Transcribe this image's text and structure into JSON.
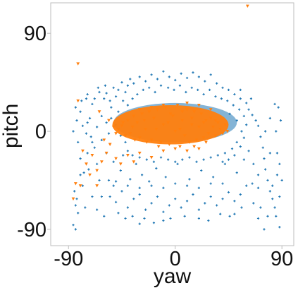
{
  "chart_data": {
    "type": "scatter",
    "title": "",
    "xlabel": "yaw",
    "ylabel": "pitch",
    "xlim": [
      -105,
      100
    ],
    "ylim": [
      -105,
      118
    ],
    "xticks": [
      -90,
      0,
      90
    ],
    "xtick_labels": [
      "-90",
      "0",
      "90"
    ],
    "yticks": [
      -90,
      0,
      90
    ],
    "ytick_labels": [
      "-90",
      "0",
      "90"
    ],
    "grid": false,
    "legend": "none",
    "series": [
      {
        "color": "#1f77b4",
        "marker": "plus",
        "points": [
          [
            -84,
            22
          ],
          [
            -80,
            18
          ],
          [
            -78,
            5
          ],
          [
            -75,
            -2
          ],
          [
            -72,
            12
          ],
          [
            -70,
            25
          ],
          [
            -68,
            -15
          ],
          [
            -66,
            -30
          ],
          [
            -64,
            -45
          ],
          [
            -62,
            -60
          ],
          [
            -85,
            -55
          ],
          [
            -84,
            -68
          ],
          [
            -83,
            -62
          ],
          [
            -82,
            -75
          ],
          [
            -80,
            -40
          ],
          [
            -78,
            -50
          ],
          [
            -76,
            -70
          ],
          [
            -74,
            -20
          ],
          [
            -73,
            -35
          ],
          [
            -71,
            -5
          ],
          [
            -60,
            30
          ],
          [
            -58,
            35
          ],
          [
            -55,
            28
          ],
          [
            -52,
            40
          ],
          [
            -50,
            32
          ],
          [
            -48,
            38
          ],
          [
            -45,
            45
          ],
          [
            -42,
            36
          ],
          [
            -40,
            42
          ],
          [
            -38,
            48
          ],
          [
            -35,
            44
          ],
          [
            -30,
            50
          ],
          [
            -25,
            46
          ],
          [
            -20,
            52
          ],
          [
            -15,
            48
          ],
          [
            -10,
            55
          ],
          [
            -5,
            50
          ],
          [
            0,
            47
          ],
          [
            5,
            53
          ],
          [
            10,
            49
          ],
          [
            15,
            54
          ],
          [
            20,
            50
          ],
          [
            25,
            46
          ],
          [
            30,
            52
          ],
          [
            35,
            44
          ],
          [
            40,
            40
          ],
          [
            45,
            38
          ],
          [
            50,
            34
          ],
          [
            55,
            30
          ],
          [
            60,
            26
          ],
          [
            62,
            20
          ],
          [
            65,
            15
          ],
          [
            68,
            10
          ],
          [
            70,
            5
          ],
          [
            72,
            -5
          ],
          [
            74,
            -15
          ],
          [
            75,
            -25
          ],
          [
            76,
            -35
          ],
          [
            78,
            -45
          ],
          [
            80,
            -55
          ],
          [
            82,
            -62
          ],
          [
            84,
            -70
          ],
          [
            85,
            -78
          ],
          [
            88,
            -60
          ],
          [
            90,
            -45
          ],
          [
            88,
            -30
          ],
          [
            86,
            -20
          ],
          [
            89,
            10
          ],
          [
            87,
            22
          ],
          [
            84,
            25
          ],
          [
            -55,
            -60
          ],
          [
            -50,
            -65
          ],
          [
            -45,
            -55
          ],
          [
            -40,
            -70
          ],
          [
            -35,
            -62
          ],
          [
            -30,
            -58
          ],
          [
            -25,
            -72
          ],
          [
            -20,
            -66
          ],
          [
            -15,
            -60
          ],
          [
            -10,
            -74
          ],
          [
            -5,
            -68
          ],
          [
            0,
            -62
          ],
          [
            5,
            -70
          ],
          [
            10,
            -64
          ],
          [
            15,
            -58
          ],
          [
            20,
            -72
          ],
          [
            25,
            -66
          ],
          [
            30,
            -60
          ],
          [
            35,
            -68
          ],
          [
            40,
            -62
          ],
          [
            45,
            -56
          ],
          [
            50,
            -64
          ],
          [
            55,
            -58
          ],
          [
            60,
            -50
          ],
          [
            65,
            -48
          ],
          [
            70,
            -52
          ],
          [
            -30,
            -85
          ],
          [
            -10,
            -82
          ],
          [
            20,
            -80
          ],
          [
            50,
            -76
          ],
          [
            -65,
            40
          ],
          [
            -62,
            -8
          ],
          [
            -58,
            -20
          ],
          [
            -52,
            -28
          ],
          [
            -46,
            -36
          ],
          [
            -44,
            -22
          ],
          [
            -38,
            -44
          ],
          [
            -33,
            -30
          ],
          [
            -28,
            -40
          ],
          [
            -22,
            -46
          ],
          [
            -16,
            -34
          ],
          [
            -8,
            -42
          ],
          [
            2,
            -30
          ],
          [
            12,
            -44
          ],
          [
            22,
            -36
          ],
          [
            32,
            -42
          ],
          [
            42,
            -30
          ],
          [
            52,
            -38
          ],
          [
            58,
            -26
          ],
          [
            62,
            -18
          ],
          [
            66,
            -30
          ],
          [
            70,
            -40
          ],
          [
            64,
            30
          ],
          [
            55,
            38
          ],
          [
            -75,
            30
          ],
          [
            -70,
            -60
          ],
          [
            -66,
            -72
          ],
          [
            -60,
            -78
          ],
          [
            -56,
            -45
          ],
          [
            -52,
            -50
          ],
          [
            -48,
            -75
          ],
          [
            -42,
            -80
          ],
          [
            -36,
            -78
          ],
          [
            -26,
            -80
          ],
          [
            -18,
            -84
          ],
          [
            -4,
            -80
          ],
          [
            8,
            -78
          ],
          [
            28,
            -82
          ],
          [
            38,
            -76
          ],
          [
            46,
            -78
          ],
          [
            56,
            -70
          ],
          [
            66,
            -66
          ],
          [
            72,
            -70
          ],
          [
            78,
            -78
          ],
          [
            82,
            -50
          ],
          [
            86,
            -40
          ],
          [
            80,
            -20
          ],
          [
            76,
            0
          ],
          [
            80,
            12
          ],
          [
            85,
            0
          ],
          [
            -86,
            0
          ],
          [
            -82,
            -10
          ],
          [
            -80,
            -25
          ],
          [
            -77,
            -38
          ],
          [
            -83,
            10
          ],
          [
            -79,
            28
          ],
          [
            -74,
            34
          ],
          [
            -68,
            30
          ],
          [
            -64,
            36
          ],
          [
            -59,
            42
          ],
          [
            -54,
            22
          ],
          [
            -48,
            18
          ],
          [
            -44,
            28
          ],
          [
            -40,
            24
          ],
          [
            -36,
            30
          ],
          [
            -32,
            34
          ],
          [
            -27,
            38
          ],
          [
            -22,
            40
          ],
          [
            -17,
            36
          ],
          [
            -12,
            42
          ],
          [
            -6,
            40
          ],
          [
            -1,
            38
          ],
          [
            4,
            42
          ],
          [
            9,
            36
          ],
          [
            14,
            40
          ],
          [
            19,
            38
          ],
          [
            24,
            34
          ],
          [
            29,
            38
          ],
          [
            34,
            32
          ],
          [
            39,
            30
          ],
          [
            44,
            28
          ],
          [
            49,
            24
          ],
          [
            54,
            20
          ],
          [
            58,
            14
          ],
          [
            60,
            6
          ],
          [
            58,
            -6
          ],
          [
            55,
            -14
          ],
          [
            50,
            -22
          ],
          [
            45,
            -26
          ],
          [
            40,
            -28
          ],
          [
            -42,
            -10
          ],
          [
            -46,
            -4
          ],
          [
            -50,
            6
          ],
          [
            -54,
            12
          ],
          [
            -56,
            -2
          ],
          [
            -58,
            8
          ],
          [
            -62,
            14
          ],
          [
            -66,
            4
          ],
          [
            -70,
            -10
          ],
          [
            -74,
            8
          ],
          [
            -40,
            -18
          ],
          [
            -36,
            -22
          ],
          [
            -30,
            -24
          ],
          [
            -24,
            -26
          ],
          [
            -18,
            -28
          ],
          [
            -12,
            -24
          ],
          [
            -6,
            -26
          ],
          [
            0,
            -28
          ],
          [
            6,
            -26
          ],
          [
            12,
            -24
          ],
          [
            18,
            -28
          ],
          [
            24,
            -26
          ],
          [
            30,
            -24
          ],
          [
            36,
            -22
          ],
          [
            42,
            -20
          ],
          [
            48,
            -16
          ],
          [
            52,
            -10
          ],
          [
            56,
            0
          ],
          [
            52,
            10
          ],
          [
            46,
            16
          ],
          [
            -20,
            -50
          ],
          [
            -10,
            -52
          ],
          [
            0,
            -48
          ],
          [
            10,
            -50
          ],
          [
            20,
            -52
          ],
          [
            30,
            -48
          ],
          [
            -30,
            -52
          ],
          [
            40,
            -48
          ],
          [
            -40,
            -50
          ],
          [
            -50,
            -46
          ],
          [
            -86,
            -86
          ],
          [
            -84,
            -90
          ],
          [
            70,
            -80
          ],
          [
            75,
            -90
          ],
          [
            88,
            -88
          ]
        ]
      },
      {
        "color": "#ff7f0e",
        "marker": "triangle-down",
        "points": [
          [
            -45,
            5
          ],
          [
            -40,
            10
          ],
          [
            -38,
            -2
          ],
          [
            -35,
            14
          ],
          [
            -32,
            8
          ],
          [
            -30,
            -6
          ],
          [
            -28,
            16
          ],
          [
            -25,
            2
          ],
          [
            -22,
            18
          ],
          [
            -20,
            -8
          ],
          [
            -18,
            12
          ],
          [
            -15,
            20
          ],
          [
            -12,
            -10
          ],
          [
            -10,
            6
          ],
          [
            -8,
            22
          ],
          [
            -5,
            -12
          ],
          [
            -2,
            14
          ],
          [
            0,
            0
          ],
          [
            2,
            24
          ],
          [
            4,
            -14
          ],
          [
            6,
            10
          ],
          [
            8,
            -4
          ],
          [
            10,
            20
          ],
          [
            12,
            -10
          ],
          [
            14,
            6
          ],
          [
            16,
            18
          ],
          [
            18,
            -8
          ],
          [
            20,
            4
          ],
          [
            22,
            16
          ],
          [
            24,
            -6
          ],
          [
            26,
            10
          ],
          [
            28,
            -2
          ],
          [
            30,
            12
          ],
          [
            32,
            4
          ],
          [
            34,
            -4
          ],
          [
            36,
            8
          ],
          [
            38,
            2
          ],
          [
            40,
            -2
          ],
          [
            42,
            6
          ],
          [
            44,
            0
          ],
          [
            -42,
            -4
          ],
          [
            -36,
            4
          ],
          [
            -26,
            10
          ],
          [
            -16,
            2
          ],
          [
            -6,
            8
          ],
          [
            4,
            2
          ],
          [
            14,
            12
          ],
          [
            24,
            8
          ],
          [
            34,
            10
          ],
          [
            -24,
            -10
          ],
          [
            -14,
            -14
          ],
          [
            -4,
            16
          ],
          [
            6,
            18
          ],
          [
            16,
            -14
          ],
          [
            26,
            -10
          ],
          [
            -34,
            -8
          ],
          [
            -44,
            8
          ],
          [
            -48,
            2
          ],
          [
            -50,
            -2
          ],
          [
            -52,
            4
          ],
          [
            -30,
            20
          ],
          [
            -20,
            22
          ],
          [
            -10,
            24
          ],
          [
            10,
            26
          ],
          [
            20,
            24
          ],
          [
            30,
            20
          ],
          [
            -10,
            -18
          ],
          [
            0,
            -16
          ],
          [
            10,
            -18
          ],
          [
            20,
            -16
          ],
          [
            -55,
            -12
          ],
          [
            -58,
            -20
          ],
          [
            -62,
            -28
          ],
          [
            -66,
            -36
          ],
          [
            -70,
            -22
          ],
          [
            -75,
            -30
          ],
          [
            -80,
            -50
          ],
          [
            -78,
            -18
          ],
          [
            -60,
            -8
          ],
          [
            -56,
            10
          ],
          [
            -64,
            18
          ],
          [
            -82,
            28
          ],
          [
            -84,
            -48
          ],
          [
            -72,
            -40
          ],
          [
            -50,
            -25
          ],
          [
            -40,
            -22
          ],
          [
            -35,
            -28
          ],
          [
            -46,
            -30
          ],
          [
            -30,
            -20
          ],
          [
            -20,
            -24
          ],
          [
            -82,
            62
          ],
          [
            61,
            115
          ],
          [
            -86,
            -62
          ],
          [
            -66,
            -50
          ]
        ]
      }
    ]
  }
}
